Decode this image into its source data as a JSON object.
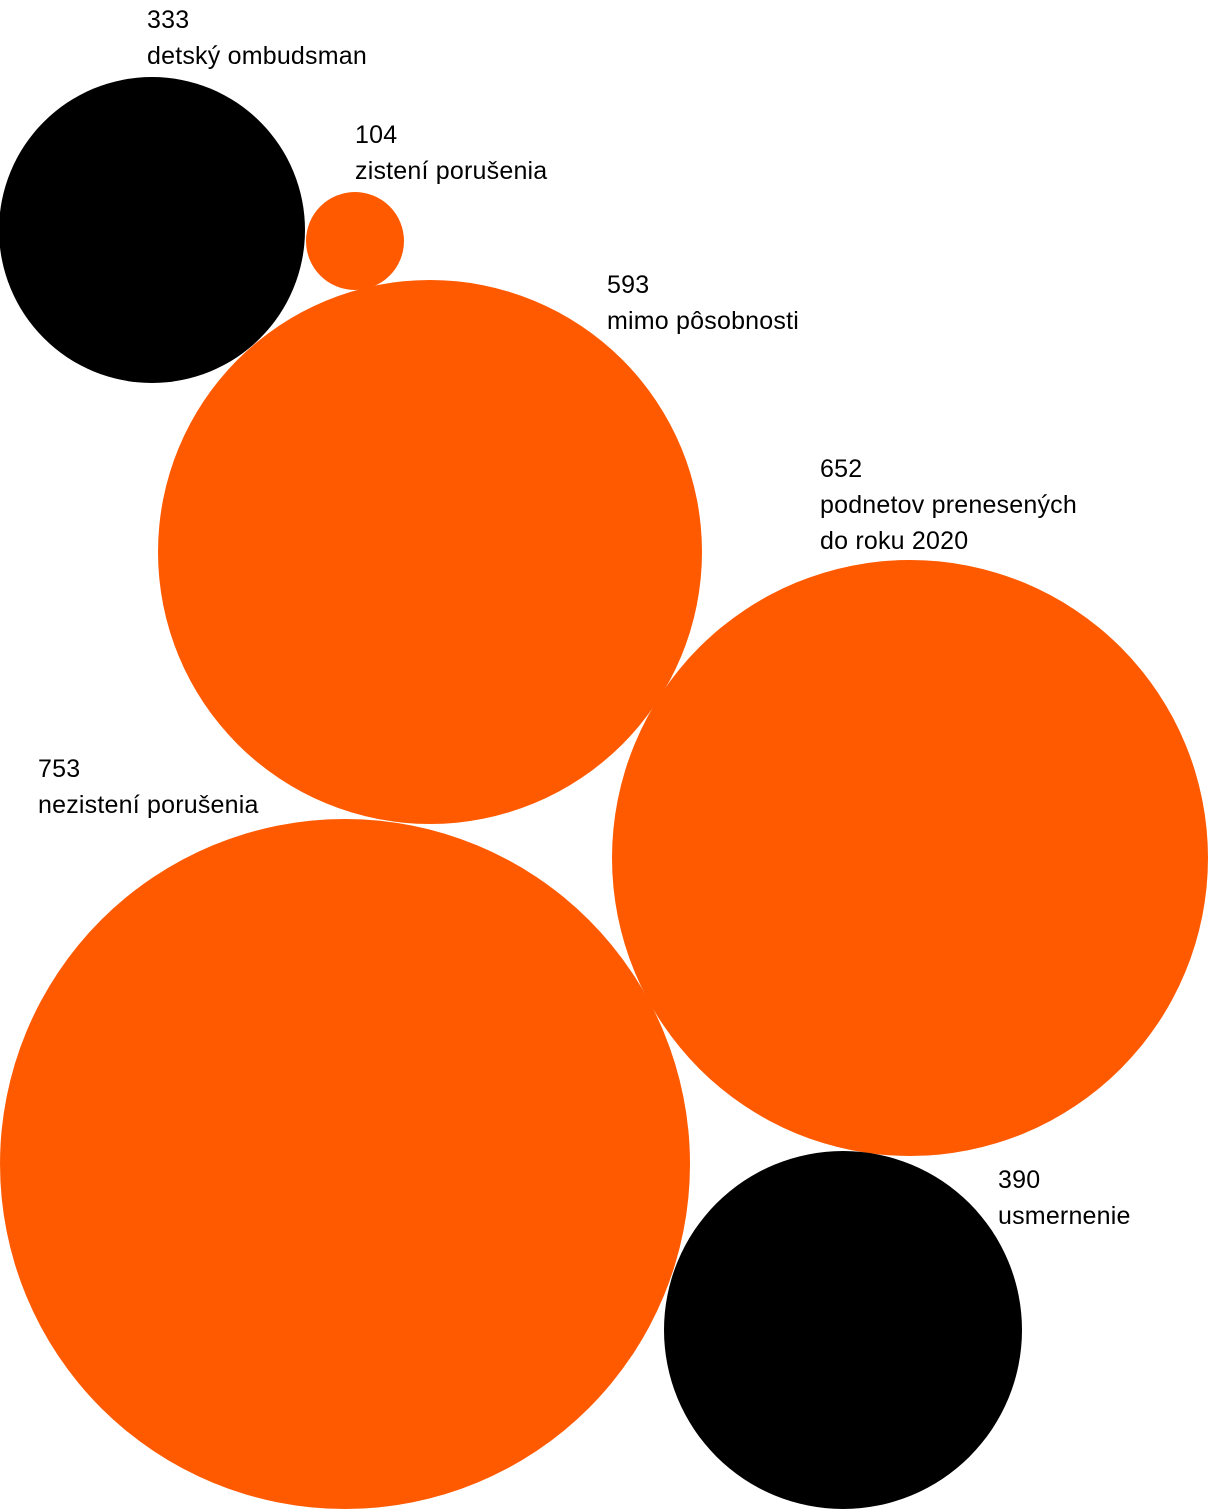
{
  "chart_data": {
    "type": "bubble",
    "colors": {
      "orange": "#FF5A00",
      "black": "#000000",
      "text": "#000000",
      "background": "#FFFFFF"
    },
    "bubbles": [
      {
        "value": 333,
        "label": [
          "detský ombudsman"
        ],
        "color": "black"
      },
      {
        "value": 104,
        "label": [
          "zistení porušenia"
        ],
        "color": "orange"
      },
      {
        "value": 593,
        "label": [
          "mimo pôsobnosti"
        ],
        "color": "orange"
      },
      {
        "value": 652,
        "label": [
          "podnetov prenesených",
          "do roku 2020"
        ],
        "color": "orange"
      },
      {
        "value": 753,
        "label": [
          "nezistení porušenia"
        ],
        "color": "orange"
      },
      {
        "value": 390,
        "label": [
          "usmernenie"
        ],
        "color": "black"
      }
    ]
  }
}
